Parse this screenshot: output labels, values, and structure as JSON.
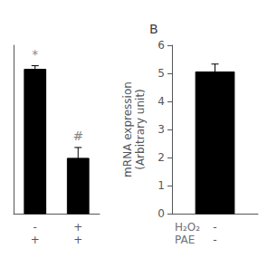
{
  "chart_data": [
    {
      "type": "bar",
      "categories": [
        "-\n+",
        "+\n+"
      ],
      "values": [
        6.0,
        2.3
      ],
      "errors": [
        0.15,
        0.45
      ],
      "color": "#000000",
      "ylim": [
        0,
        7
      ],
      "tick_labels": "x",
      "grid": false,
      "annotations": [
        {
          "text": "*",
          "category": "-\n+",
          "y": 6.3,
          "color": "#666666"
        },
        {
          "text": "#",
          "category": "+\n+",
          "y": 2.9,
          "color": "#666666"
        }
      ]
    },
    {
      "type": "bar",
      "title": "B",
      "categories": [
        "-\n-"
      ],
      "x_row_labels": [
        "H₂O₂",
        "PAE"
      ],
      "values": [
        5.05
      ],
      "errors": [
        0.28
      ],
      "color": "#000000",
      "ylabel": "mRNA expression\n(Arbitrary unit)",
      "ylim": [
        0,
        6
      ],
      "yticks": [
        0,
        1,
        2,
        3,
        4,
        5,
        6
      ],
      "grid": false
    }
  ]
}
